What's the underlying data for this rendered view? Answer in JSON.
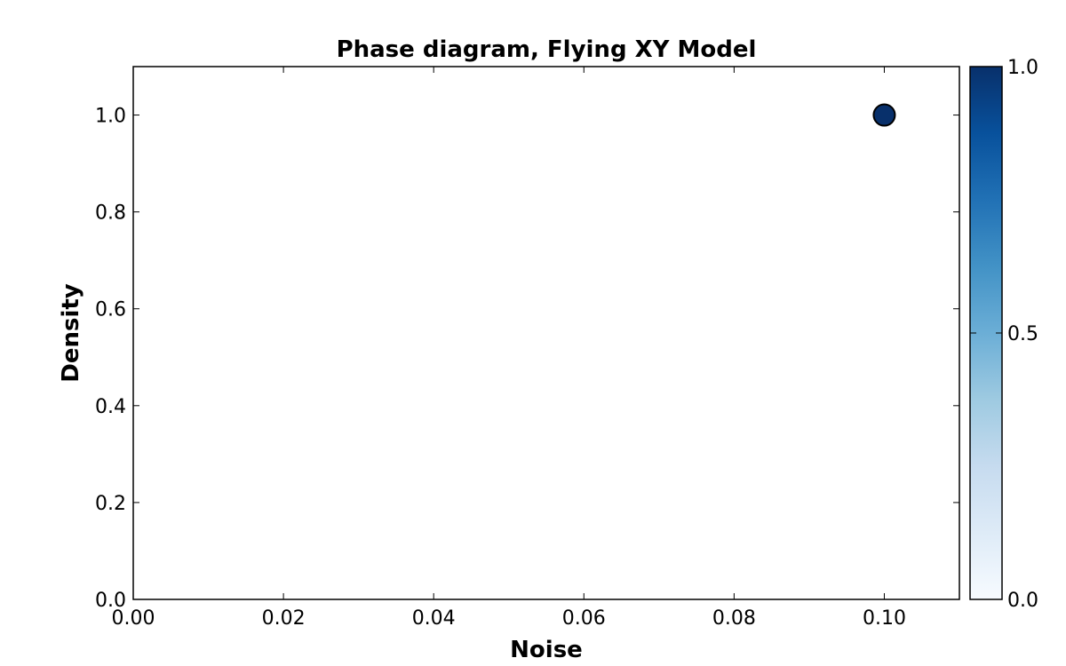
{
  "chart_data": {
    "type": "scatter",
    "title": "Phase diagram, Flying XY Model",
    "xlabel": "Noise",
    "ylabel": "Density",
    "xlim": [
      0.0,
      0.11
    ],
    "ylim": [
      0.0,
      1.1
    ],
    "x_ticks": [
      "0.00",
      "0.02",
      "0.04",
      "0.06",
      "0.08",
      "0.10"
    ],
    "y_ticks": [
      "0.0",
      "0.2",
      "0.4",
      "0.6",
      "0.8",
      "1.0"
    ],
    "grid": false,
    "points": [
      {
        "x": 0.1,
        "y": 1.0,
        "value": 1.0
      }
    ],
    "colorbar": {
      "colormap": "Blues",
      "range": [
        0.0,
        1.0
      ],
      "ticks": [
        "0.0",
        "0.5",
        "1.0"
      ],
      "stops": [
        "#f7fbff",
        "#deebf7",
        "#c6dbef",
        "#9ecae1",
        "#6baed6",
        "#4292c6",
        "#2171b5",
        "#08519c",
        "#08306b"
      ]
    }
  }
}
